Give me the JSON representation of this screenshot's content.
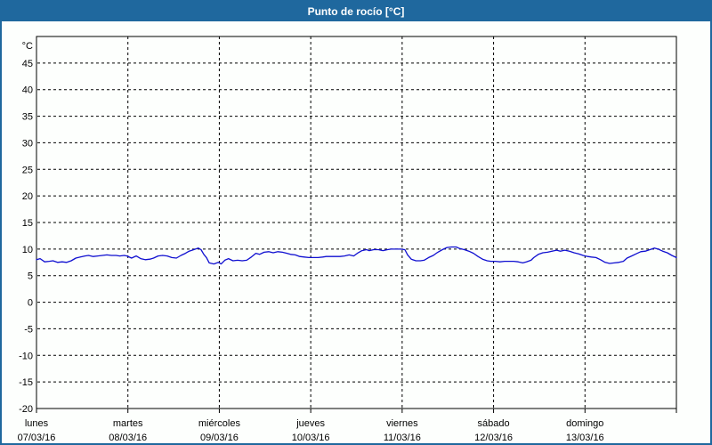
{
  "window": {
    "title": "Punto de rocío [°C]"
  },
  "colors": {
    "accent": "#1f689e",
    "title_text": "#ffffff",
    "plot_background": "#fdfffd",
    "grid": "#000000",
    "axis": "#000000",
    "line": "#0f0fd0"
  },
  "chart_data": {
    "type": "line",
    "title": "Punto de rocío [°C]",
    "y_unit_label": "°C",
    "ylim": [
      -20,
      50
    ],
    "y_ticks": [
      45,
      40,
      35,
      30,
      25,
      20,
      15,
      10,
      5,
      0,
      -5,
      -10,
      -15,
      -20
    ],
    "grid": "dashed",
    "legend": "none",
    "x_axis": {
      "days": [
        {
          "name": "lunes",
          "date": "07/03/16"
        },
        {
          "name": "martes",
          "date": "08/03/16"
        },
        {
          "name": "miércoles",
          "date": "09/03/16"
        },
        {
          "name": "jueves",
          "date": "10/03/16"
        },
        {
          "name": "viernes",
          "date": "11/03/16"
        },
        {
          "name": "sábado",
          "date": "12/03/16"
        },
        {
          "name": "domingo",
          "date": "13/03/16"
        }
      ],
      "span_days": 7
    },
    "series": [
      {
        "name": "Punto de rocío",
        "unit": "°C",
        "color": "#0f0fd0",
        "points_format": "[days_from_start, value_celsius]",
        "points": [
          [
            0.0,
            8.0
          ],
          [
            0.04,
            8.2
          ],
          [
            0.09,
            7.6
          ],
          [
            0.14,
            7.7
          ],
          [
            0.18,
            7.8
          ],
          [
            0.23,
            7.5
          ],
          [
            0.28,
            7.6
          ],
          [
            0.33,
            7.5
          ],
          [
            0.38,
            7.8
          ],
          [
            0.43,
            8.3
          ],
          [
            0.48,
            8.5
          ],
          [
            0.53,
            8.7
          ],
          [
            0.57,
            8.8
          ],
          [
            0.62,
            8.6
          ],
          [
            0.67,
            8.7
          ],
          [
            0.72,
            8.8
          ],
          [
            0.77,
            8.9
          ],
          [
            0.82,
            8.8
          ],
          [
            0.87,
            8.8
          ],
          [
            0.91,
            8.7
          ],
          [
            0.96,
            8.8
          ],
          [
            0.99,
            8.7
          ],
          [
            1.04,
            8.3
          ],
          [
            1.09,
            8.7
          ],
          [
            1.14,
            8.2
          ],
          [
            1.19,
            8.0
          ],
          [
            1.24,
            8.1
          ],
          [
            1.28,
            8.3
          ],
          [
            1.33,
            8.7
          ],
          [
            1.38,
            8.8
          ],
          [
            1.43,
            8.7
          ],
          [
            1.48,
            8.4
          ],
          [
            1.53,
            8.3
          ],
          [
            1.58,
            8.8
          ],
          [
            1.63,
            9.2
          ],
          [
            1.67,
            9.6
          ],
          [
            1.72,
            9.9
          ],
          [
            1.77,
            10.2
          ],
          [
            1.8,
            9.9
          ],
          [
            1.83,
            9.0
          ],
          [
            1.86,
            8.4
          ],
          [
            1.89,
            7.4
          ],
          [
            1.94,
            7.2
          ],
          [
            1.99,
            7.5
          ],
          [
            2.02,
            7.2
          ],
          [
            2.06,
            7.9
          ],
          [
            2.1,
            8.2
          ],
          [
            2.15,
            7.8
          ],
          [
            2.2,
            7.9
          ],
          [
            2.25,
            7.8
          ],
          [
            2.3,
            7.9
          ],
          [
            2.35,
            8.5
          ],
          [
            2.4,
            9.2
          ],
          [
            2.44,
            9.0
          ],
          [
            2.49,
            9.4
          ],
          [
            2.54,
            9.5
          ],
          [
            2.59,
            9.3
          ],
          [
            2.64,
            9.5
          ],
          [
            2.69,
            9.4
          ],
          [
            2.74,
            9.2
          ],
          [
            2.78,
            9.0
          ],
          [
            2.83,
            8.9
          ],
          [
            2.88,
            8.6
          ],
          [
            2.93,
            8.5
          ],
          [
            2.98,
            8.4
          ],
          [
            3.03,
            8.4
          ],
          [
            3.08,
            8.4
          ],
          [
            3.13,
            8.5
          ],
          [
            3.17,
            8.6
          ],
          [
            3.22,
            8.6
          ],
          [
            3.27,
            8.6
          ],
          [
            3.32,
            8.6
          ],
          [
            3.37,
            8.7
          ],
          [
            3.42,
            8.9
          ],
          [
            3.47,
            8.7
          ],
          [
            3.51,
            9.2
          ],
          [
            3.56,
            9.7
          ],
          [
            3.61,
            9.9
          ],
          [
            3.64,
            9.7
          ],
          [
            3.69,
            9.9
          ],
          [
            3.74,
            9.9
          ],
          [
            3.79,
            9.7
          ],
          [
            3.84,
            9.9
          ],
          [
            3.88,
            10.0
          ],
          [
            3.93,
            10.0
          ],
          [
            3.98,
            10.0
          ],
          [
            4.03,
            9.9
          ],
          [
            4.06,
            8.9
          ],
          [
            4.1,
            8.1
          ],
          [
            4.15,
            7.8
          ],
          [
            4.2,
            7.8
          ],
          [
            4.24,
            7.9
          ],
          [
            4.29,
            8.4
          ],
          [
            4.34,
            8.8
          ],
          [
            4.39,
            9.4
          ],
          [
            4.44,
            9.9
          ],
          [
            4.49,
            10.3
          ],
          [
            4.54,
            10.4
          ],
          [
            4.59,
            10.4
          ],
          [
            4.63,
            10.1
          ],
          [
            4.68,
            9.9
          ],
          [
            4.73,
            9.6
          ],
          [
            4.78,
            9.2
          ],
          [
            4.83,
            8.6
          ],
          [
            4.88,
            8.1
          ],
          [
            4.93,
            7.8
          ],
          [
            4.97,
            7.7
          ],
          [
            5.02,
            7.7
          ],
          [
            5.07,
            7.6
          ],
          [
            5.12,
            7.7
          ],
          [
            5.17,
            7.7
          ],
          [
            5.22,
            7.7
          ],
          [
            5.27,
            7.6
          ],
          [
            5.32,
            7.4
          ],
          [
            5.36,
            7.6
          ],
          [
            5.41,
            7.9
          ],
          [
            5.44,
            8.4
          ],
          [
            5.49,
            9.0
          ],
          [
            5.54,
            9.3
          ],
          [
            5.59,
            9.4
          ],
          [
            5.64,
            9.6
          ],
          [
            5.69,
            9.8
          ],
          [
            5.73,
            9.6
          ],
          [
            5.78,
            9.8
          ],
          [
            5.83,
            9.6
          ],
          [
            5.88,
            9.3
          ],
          [
            5.93,
            9.1
          ],
          [
            5.98,
            8.8
          ],
          [
            6.03,
            8.6
          ],
          [
            6.07,
            8.5
          ],
          [
            6.12,
            8.4
          ],
          [
            6.17,
            8.0
          ],
          [
            6.22,
            7.5
          ],
          [
            6.27,
            7.3
          ],
          [
            6.32,
            7.4
          ],
          [
            6.37,
            7.5
          ],
          [
            6.42,
            7.7
          ],
          [
            6.46,
            8.3
          ],
          [
            6.51,
            8.7
          ],
          [
            6.56,
            9.1
          ],
          [
            6.61,
            9.5
          ],
          [
            6.66,
            9.6
          ],
          [
            6.71,
            9.9
          ],
          [
            6.76,
            10.2
          ],
          [
            6.8,
            10.0
          ],
          [
            6.85,
            9.6
          ],
          [
            6.9,
            9.3
          ],
          [
            6.95,
            8.8
          ],
          [
            7.0,
            8.4
          ]
        ]
      }
    ]
  }
}
